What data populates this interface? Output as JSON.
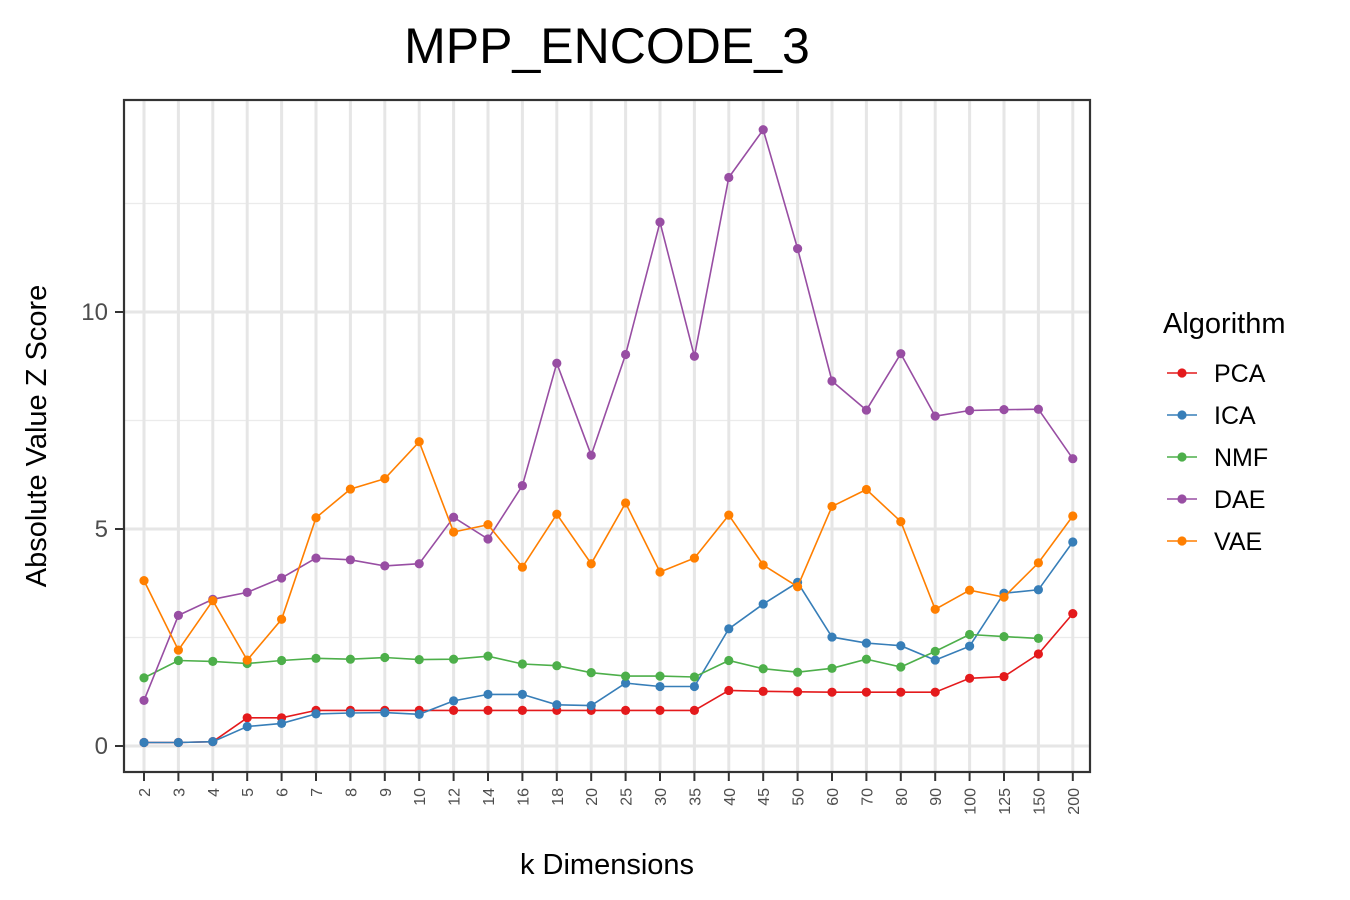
{
  "chart_data": {
    "type": "line",
    "title": "MPP_ENCODE_3",
    "xlabel": "k Dimensions",
    "ylabel": "Absolute Value Z Score",
    "categories": [
      "2",
      "3",
      "4",
      "5",
      "6",
      "7",
      "8",
      "9",
      "10",
      "12",
      "14",
      "16",
      "18",
      "20",
      "25",
      "30",
      "35",
      "40",
      "45",
      "50",
      "60",
      "70",
      "80",
      "90",
      "100",
      "125",
      "150",
      "200"
    ],
    "yticks": [
      0,
      5,
      10
    ],
    "ylim": [
      -0.6,
      14.9
    ],
    "grid": true,
    "legend": {
      "title": "Algorithm",
      "position": "right"
    },
    "series": [
      {
        "name": "PCA",
        "color": "#e41a1c",
        "values": [
          0.08,
          0.08,
          0.1,
          0.65,
          0.65,
          0.82,
          0.82,
          0.82,
          0.82,
          0.82,
          0.82,
          0.82,
          0.82,
          0.82,
          0.82,
          0.82,
          0.82,
          1.28,
          1.26,
          1.25,
          1.24,
          1.24,
          1.24,
          1.24,
          1.56,
          1.6,
          2.12,
          3.05
        ]
      },
      {
        "name": "ICA",
        "color": "#377eb8",
        "values": [
          0.08,
          0.08,
          0.1,
          0.45,
          0.52,
          0.74,
          0.76,
          0.77,
          0.73,
          1.04,
          1.19,
          1.19,
          0.95,
          0.93,
          1.45,
          1.37,
          1.37,
          2.7,
          3.27,
          3.77,
          2.51,
          2.37,
          2.31,
          1.98,
          2.3,
          3.52,
          3.6,
          4.7
        ]
      },
      {
        "name": "NMF",
        "color": "#4daf4a",
        "values": [
          1.57,
          1.97,
          1.95,
          1.9,
          1.97,
          2.02,
          2.0,
          2.04,
          1.99,
          2.0,
          2.07,
          1.89,
          1.85,
          1.69,
          1.61,
          1.61,
          1.59,
          1.97,
          1.78,
          1.7,
          1.79,
          2.0,
          1.82,
          2.18,
          2.57,
          2.52,
          2.48,
          null
        ]
      },
      {
        "name": "DAE",
        "color": "#984ea3",
        "values": [
          1.05,
          3.01,
          3.38,
          3.54,
          3.87,
          4.33,
          4.29,
          4.15,
          4.2,
          5.27,
          4.77,
          6.0,
          8.82,
          6.7,
          9.02,
          12.07,
          8.98,
          13.1,
          14.2,
          11.46,
          8.41,
          7.74,
          9.04,
          7.6,
          7.73,
          7.75,
          7.76,
          6.62
        ]
      },
      {
        "name": "VAE",
        "color": "#ff7f00",
        "values": [
          3.81,
          2.21,
          3.35,
          1.98,
          2.92,
          5.26,
          5.92,
          6.16,
          7.01,
          4.93,
          5.1,
          4.12,
          5.34,
          4.2,
          5.6,
          4.01,
          4.33,
          5.32,
          4.17,
          3.67,
          5.52,
          5.91,
          5.17,
          3.15,
          3.59,
          3.43,
          4.22,
          5.3
        ]
      }
    ]
  }
}
